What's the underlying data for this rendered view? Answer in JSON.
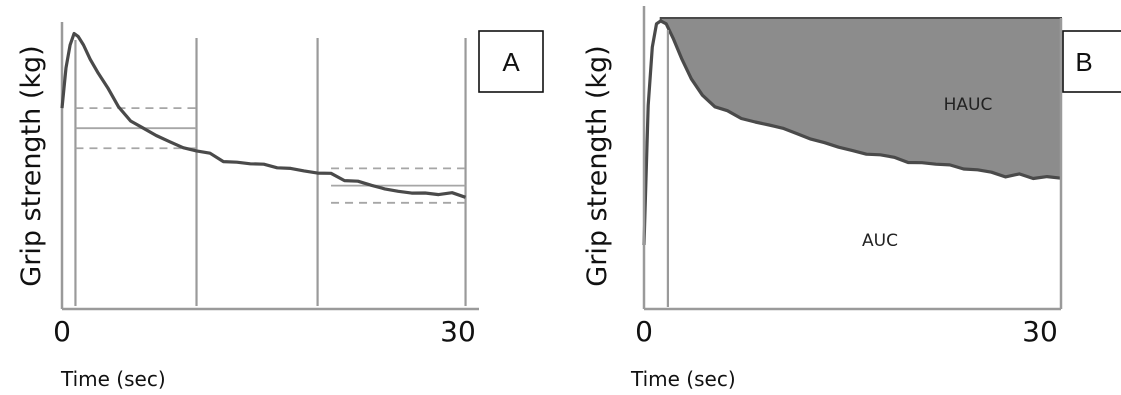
{
  "chart_data": [
    {
      "type": "line",
      "panel_label": "A",
      "ylabel": "Grip strength (kg)",
      "xlabel": "Time (sec)",
      "x_ticks": [
        "0",
        "30"
      ],
      "xlim": [
        0,
        31
      ],
      "ylim": [
        0,
        100
      ],
      "grid": false,
      "series": [
        {
          "x": [
            0,
            0.3,
            0.6,
            0.9,
            1.2,
            1.6,
            2.1,
            2.7,
            3.4,
            4.2,
            5.1,
            6,
            7,
            8,
            9,
            10,
            11,
            12,
            13,
            14,
            15,
            16,
            17,
            18,
            19,
            20,
            21,
            22,
            23,
            24,
            25,
            26,
            27,
            28,
            29,
            30
          ],
          "y": [
            70,
            84,
            92,
            96,
            95,
            92,
            87,
            82,
            77,
            70,
            66,
            63,
            61,
            58,
            56,
            55,
            54,
            52,
            51,
            51,
            50,
            49,
            49,
            48,
            48,
            47,
            45,
            44,
            43,
            42,
            41,
            41,
            40,
            40,
            40,
            39
          ]
        }
      ],
      "vertical_lines_x": [
        1,
        10,
        19,
        30
      ],
      "band_start": {
        "x_range": [
          1,
          10
        ],
        "center": 63,
        "upper": 70,
        "lower": 56
      },
      "band_end": {
        "x_range": [
          20,
          30
        ],
        "center": 43,
        "upper": 49,
        "lower": 37
      }
    },
    {
      "type": "area",
      "panel_label": "B",
      "ylabel": "Grip strength (kg)",
      "xlabel": "Time (sec)",
      "x_ticks": [
        "0",
        "30"
      ],
      "xlim": [
        0,
        30
      ],
      "ylim": [
        0,
        100
      ],
      "grid": false,
      "region_labels": [
        "HAUC",
        "AUC"
      ],
      "series": [
        {
          "x": [
            0,
            0.3,
            0.6,
            0.9,
            1.2,
            1.6,
            2.1,
            2.7,
            3.4,
            4.2,
            5.1,
            6,
            7,
            8,
            9,
            10,
            11,
            12,
            13,
            14,
            15,
            16,
            17,
            18,
            19,
            20,
            21,
            22,
            23,
            24,
            25,
            26,
            27,
            28,
            29,
            30
          ],
          "y": [
            22,
            70,
            90,
            98,
            99,
            98,
            93,
            86,
            79,
            73,
            70,
            68,
            66,
            64,
            63,
            62,
            60,
            59,
            57,
            56,
            54,
            53,
            53,
            52,
            51,
            50,
            50,
            49,
            48,
            48,
            47,
            46,
            46,
            45,
            45,
            45
          ]
        }
      ],
      "vertical_lines_x": [
        1
      ]
    }
  ]
}
